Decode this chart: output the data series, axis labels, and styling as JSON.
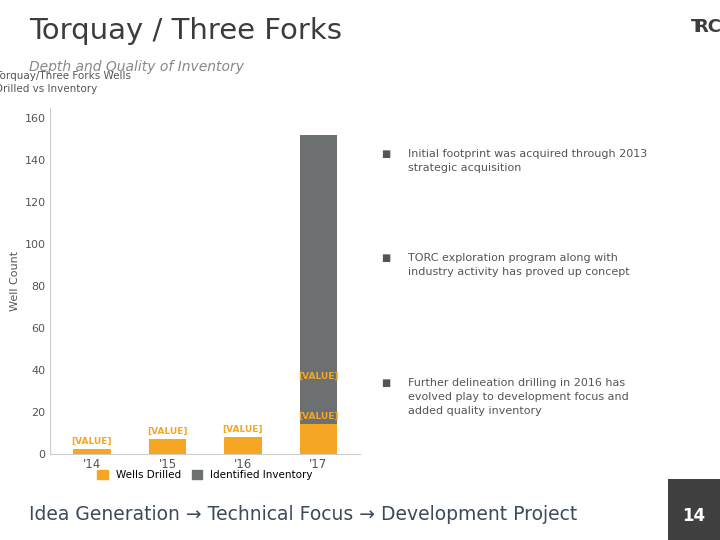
{
  "title_main": "Torquay / Three Forks",
  "title_sub": "Depth and Quality of Inventory",
  "chart_title": "Torquay/Three Forks Wells\nDrilled vs Inventory",
  "years": [
    "'14",
    "'15",
    "'16",
    "'17"
  ],
  "wells_drilled": [
    2,
    7,
    8,
    14
  ],
  "identified_inventory": [
    0,
    0,
    0,
    138
  ],
  "ylabel": "Well Count",
  "ylim": [
    0,
    165
  ],
  "yticks": [
    0,
    20,
    40,
    60,
    80,
    100,
    120,
    140,
    160
  ],
  "color_drilled": "#F5A623",
  "color_inventory": "#6D7070",
  "legend_drilled": "Wells Drilled",
  "legend_inventory": "Identified Inventory",
  "bullet1": "Initial footprint was acquired through 2013\nstrategic acquisition",
  "bullet2": "TORC exploration program along with\nindustry activity has proved up concept",
  "bullet3": "Further delineation drilling in 2016 has\nevolved play to development focus and\nadded quality inventory",
  "bottom_text": "Idea Generation → Technical Focus → Development Project",
  "bg_color": "#FFFFFF",
  "text_color": "#555555",
  "page_num": "14",
  "bar_label_14": "[VALUE]",
  "bar_label_15": "[VALUE]",
  "bar_label_16": "[VALUE]",
  "bar_label_17": "[VALUE]",
  "bar_label_17_inv": "[VALUE]"
}
